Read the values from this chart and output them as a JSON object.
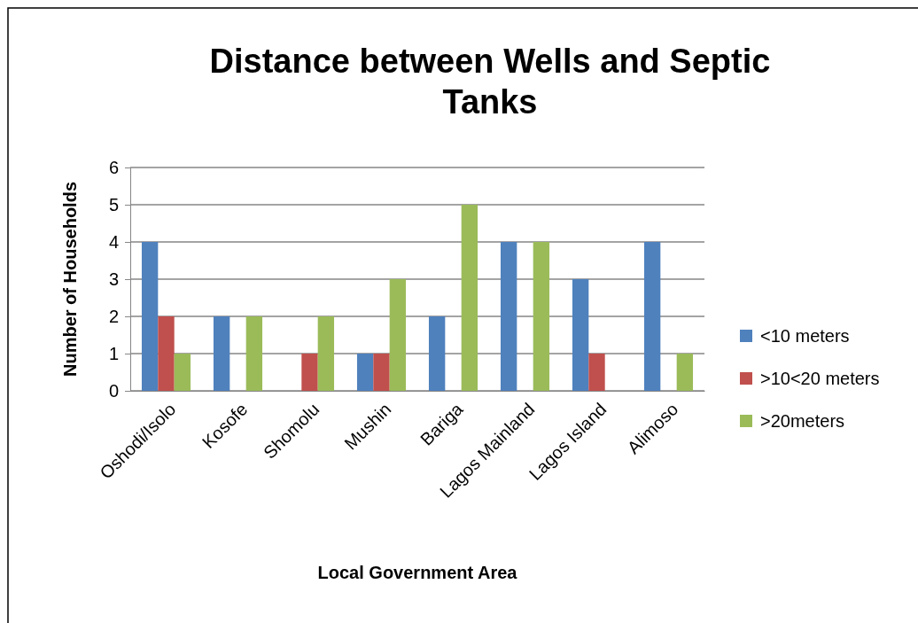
{
  "chart_data": {
    "type": "bar",
    "title": "Distance between Wells and Septic Tanks",
    "xlabel": "Local Government Area",
    "ylabel": "Number of Households",
    "categories": [
      "Oshodi/Isolo",
      "Kosofe",
      "Shomolu",
      "Mushin",
      "Bariga",
      "Lagos Mainland",
      "Lagos Island",
      "Alimoso"
    ],
    "series": [
      {
        "name": "<10 meters",
        "color": "#4f81bd",
        "values": [
          4,
          2,
          0,
          1,
          2,
          4,
          3,
          4
        ]
      },
      {
        "name": ">10<20 meters",
        "color": "#c0504d",
        "values": [
          2,
          0,
          1,
          1,
          0,
          0,
          1,
          0
        ]
      },
      {
        "name": ">20meters",
        "color": "#9bbb59",
        "values": [
          1,
          2,
          2,
          3,
          5,
          4,
          0,
          1
        ]
      }
    ],
    "ylim": [
      0,
      6
    ],
    "yticks": [
      0,
      1,
      2,
      3,
      4,
      5,
      6
    ],
    "grid": "y",
    "legend": "right"
  }
}
